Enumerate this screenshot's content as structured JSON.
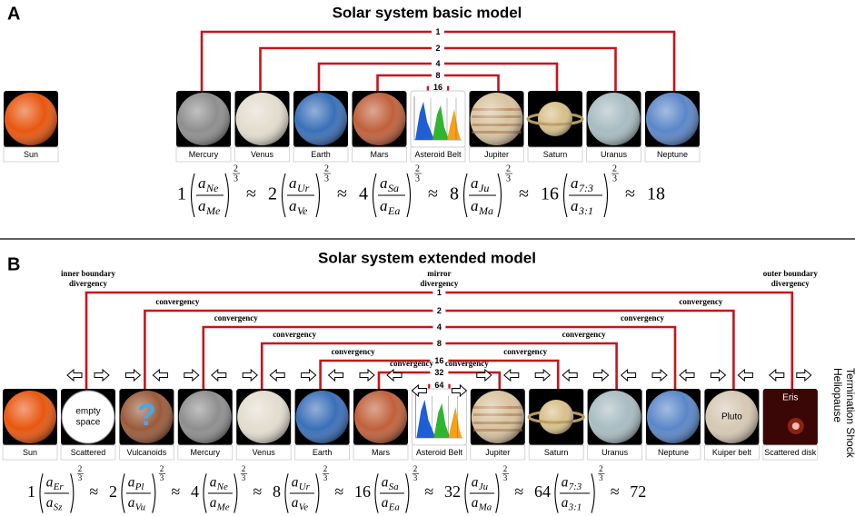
{
  "panels": [
    {
      "letter": "A",
      "title": "Solar system basic model",
      "sun": {
        "name": "Sun",
        "color": "#e8560f"
      },
      "bodies": [
        {
          "name": "Mercury",
          "color": "#8e8e8e"
        },
        {
          "name": "Venus",
          "color": "#e3ddcf"
        },
        {
          "name": "Earth",
          "color": "#3a6fb8"
        },
        {
          "name": "Mars",
          "color": "#c0603a"
        },
        {
          "name": "Asteroid Belt",
          "color": "#ffffff",
          "histogram_colors": [
            "#1f5fd6",
            "#2fb52f",
            "#f5a01a"
          ]
        },
        {
          "name": "Jupiter",
          "color": "#d9c3a0",
          "band_color": "#a8734a"
        },
        {
          "name": "Saturn",
          "color": "#d8c08a",
          "ring_color": "#b89a60"
        },
        {
          "name": "Uranus",
          "color": "#a8bcc2"
        },
        {
          "name": "Neptune",
          "color": "#5a86c8"
        }
      ],
      "links": [
        "1",
        "2",
        "4",
        "8",
        "16"
      ],
      "formula": {
        "variable": "a",
        "exponent_num": "2",
        "exponent_den": "3",
        "approx": "≈",
        "terms": [
          {
            "coef": "1",
            "num": "Ne",
            "den": "Me"
          },
          {
            "coef": "2",
            "num": "Ur",
            "den": "Ve"
          },
          {
            "coef": "4",
            "num": "Sa",
            "den": "Ea"
          },
          {
            "coef": "8",
            "num": "Ju",
            "den": "Ma"
          },
          {
            "coef": "16",
            "num": "7:3",
            "den": "3:1"
          }
        ],
        "result": "18"
      }
    },
    {
      "letter": "B",
      "title": "Solar system extended model",
      "sun": {
        "name": "Sun",
        "color": "#e8560f"
      },
      "bodies": [
        {
          "name": "Scattered",
          "color": "#ffffff",
          "inner_lines": [
            "empty",
            "space"
          ]
        },
        {
          "name": "Vulcanoids",
          "color": "#9a5a3a",
          "inner_lines": [
            "?"
          ]
        },
        {
          "name": "Mercury",
          "color": "#8e8e8e"
        },
        {
          "name": "Venus",
          "color": "#e3ddcf"
        },
        {
          "name": "Earth",
          "color": "#3a6fb8"
        },
        {
          "name": "Mars",
          "color": "#c0603a"
        },
        {
          "name": "Asteroid Belt",
          "color": "#ffffff",
          "histogram_colors": [
            "#1f5fd6",
            "#2fb52f",
            "#f5a01a"
          ]
        },
        {
          "name": "Jupiter",
          "color": "#d9c3a0",
          "band_color": "#a8734a"
        },
        {
          "name": "Saturn",
          "color": "#d8c08a",
          "ring_color": "#b89a60"
        },
        {
          "name": "Uranus",
          "color": "#a8bcc2"
        },
        {
          "name": "Neptune",
          "color": "#5a86c8"
        },
        {
          "name": "Kuiper belt",
          "color": "#d6c8b4",
          "inner_lines": [
            "Pluto"
          ]
        },
        {
          "name": "Scattered disk",
          "color": "#3a0606",
          "inner_lines": [
            "Eris"
          ]
        }
      ],
      "links": [
        "1",
        "2",
        "4",
        "8",
        "16",
        "32",
        "64"
      ],
      "divergency_labels": [
        [
          "inner boundary",
          "divergency"
        ],
        [
          "mirror",
          "divergency"
        ],
        [
          "outer boundary",
          "divergency"
        ]
      ],
      "convergency": "convergency",
      "side_labels": [
        "Heliopause",
        "Termination Shock"
      ],
      "formula": {
        "variable": "a",
        "exponent_num": "2",
        "exponent_den": "3",
        "approx": "≈",
        "terms": [
          {
            "coef": "1",
            "num": "Er",
            "den": "Sz"
          },
          {
            "coef": "2",
            "num": "Pl",
            "den": "Vu"
          },
          {
            "coef": "4",
            "num": "Ne",
            "den": "Me"
          },
          {
            "coef": "8",
            "num": "Ur",
            "den": "Ve"
          },
          {
            "coef": "16",
            "num": "Sa",
            "den": "Ea"
          },
          {
            "coef": "32",
            "num": "Ju",
            "den": "Ma"
          },
          {
            "coef": "64",
            "num": "7:3",
            "den": "3:1"
          }
        ],
        "result": "72"
      }
    }
  ]
}
